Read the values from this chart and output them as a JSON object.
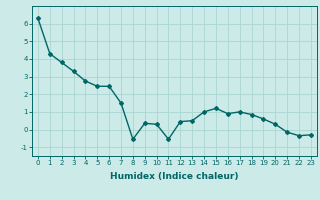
{
  "x": [
    0,
    1,
    2,
    3,
    4,
    5,
    6,
    7,
    8,
    9,
    10,
    11,
    12,
    13,
    14,
    15,
    16,
    17,
    18,
    19,
    20,
    21,
    22,
    23
  ],
  "y": [
    6.3,
    4.3,
    3.8,
    3.3,
    2.75,
    2.45,
    2.45,
    1.5,
    -0.55,
    0.35,
    0.3,
    -0.55,
    0.45,
    0.5,
    1.0,
    1.2,
    0.9,
    1.0,
    0.85,
    0.6,
    0.3,
    -0.15,
    -0.35,
    -0.3
  ],
  "line_color": "#006666",
  "marker": "D",
  "marker_size": 2.0,
  "bg_color": "#cceae8",
  "grid_color": "#aad4d0",
  "xlabel": "Humidex (Indice chaleur)",
  "xlim": [
    -0.5,
    23.5
  ],
  "ylim": [
    -1.5,
    7.0
  ],
  "yticks": [
    -1,
    0,
    1,
    2,
    3,
    4,
    5,
    6
  ],
  "xticks": [
    0,
    1,
    2,
    3,
    4,
    5,
    6,
    7,
    8,
    9,
    10,
    11,
    12,
    13,
    14,
    15,
    16,
    17,
    18,
    19,
    20,
    21,
    22,
    23
  ],
  "tick_fontsize": 5.0,
  "xlabel_fontsize": 6.5,
  "axis_color": "#006666",
  "linewidth": 1.0
}
